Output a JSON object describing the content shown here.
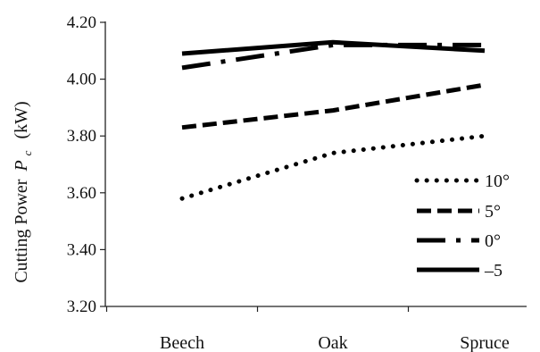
{
  "chart_data": {
    "type": "line",
    "title": "",
    "xlabel": "",
    "ylabel": {
      "prefix": "Cutting Power",
      "symbol": "P",
      "subscript": "c",
      "unit": "(kW)"
    },
    "categories": [
      "Beech",
      "Oak",
      "Spruce"
    ],
    "ylim": [
      3.2,
      4.2
    ],
    "yticks": [
      "3.20",
      "3.40",
      "3.60",
      "3.80",
      "4.00",
      "4.20"
    ],
    "grid": false,
    "legend_position": "bottom-right",
    "series": [
      {
        "name": "10°",
        "values": [
          3.58,
          3.74,
          3.8
        ],
        "style": "dotted",
        "color": "#000000"
      },
      {
        "name": "5°",
        "values": [
          3.83,
          3.89,
          3.98
        ],
        "style": "dashed",
        "color": "#000000"
      },
      {
        "name": "0°",
        "values": [
          4.04,
          4.12,
          4.12
        ],
        "style": "dash-dot",
        "color": "#000000"
      },
      {
        "name": "–5",
        "values": [
          4.09,
          4.13,
          4.1
        ],
        "style": "solid",
        "color": "#000000"
      }
    ]
  }
}
